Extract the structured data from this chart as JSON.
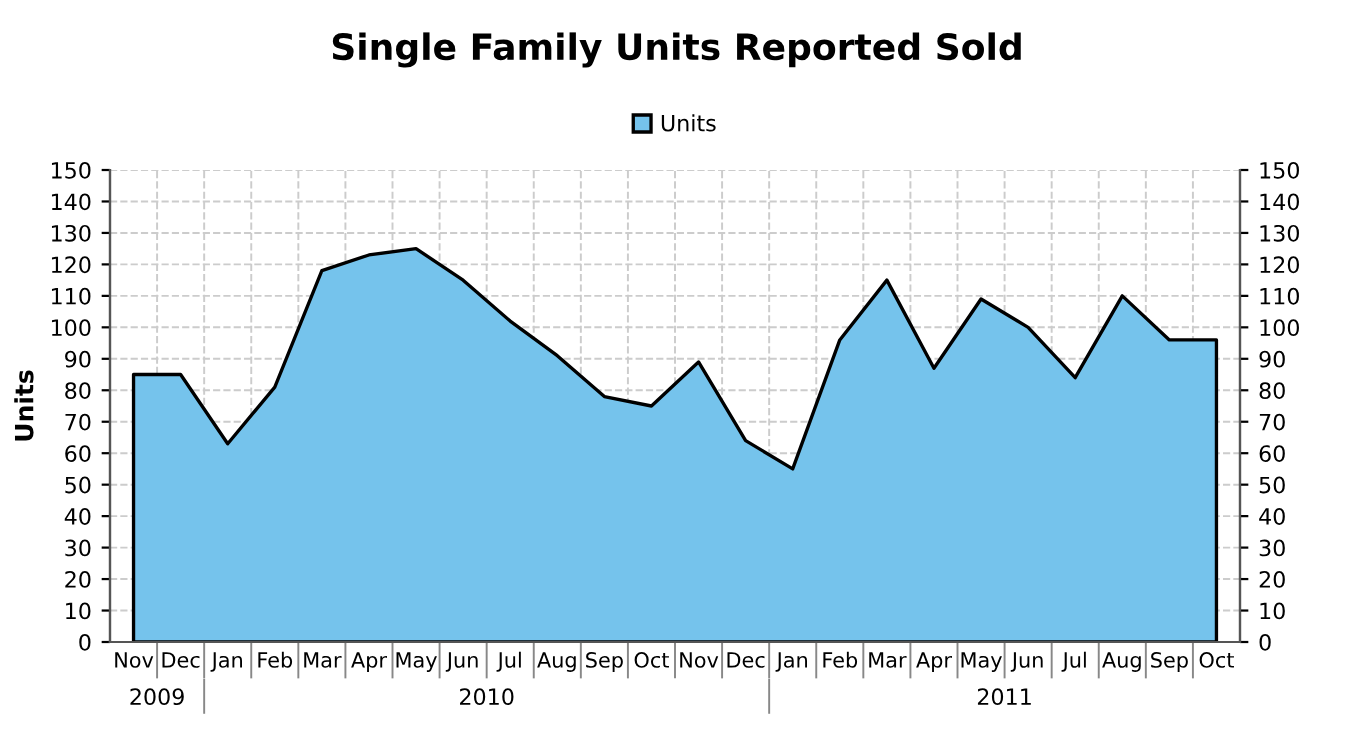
{
  "chart_data": {
    "type": "area",
    "title": "Single Family Units Reported Sold",
    "ylabel": "Units",
    "categories": [
      "Nov",
      "Dec",
      "Jan",
      "Feb",
      "Mar",
      "Apr",
      "May",
      "Jun",
      "Jul",
      "Aug",
      "Sep",
      "Oct",
      "Nov",
      "Dec",
      "Jan",
      "Feb",
      "Mar",
      "Apr",
      "May",
      "Jun",
      "Jul",
      "Aug",
      "Sep",
      "Oct"
    ],
    "series": [
      {
        "name": "Units",
        "color": "#75c3ec",
        "values": [
          85,
          85,
          63,
          81,
          118,
          123,
          125,
          115,
          102,
          91,
          78,
          75,
          89,
          64,
          55,
          96,
          115,
          87,
          109,
          100,
          84,
          110,
          96,
          96
        ]
      }
    ],
    "ylim": [
      0,
      150
    ],
    "yticks": [
      0,
      10,
      20,
      30,
      40,
      50,
      60,
      70,
      80,
      90,
      100,
      110,
      120,
      130,
      140,
      150
    ],
    "y2lim": [
      0,
      150
    ],
    "y2ticks": [
      0,
      10,
      20,
      30,
      40,
      50,
      60,
      70,
      80,
      90,
      100,
      110,
      120,
      130,
      140,
      150
    ],
    "annotations": [
      "2009",
      "2010",
      "2011"
    ],
    "grid": true,
    "legend": "top"
  }
}
